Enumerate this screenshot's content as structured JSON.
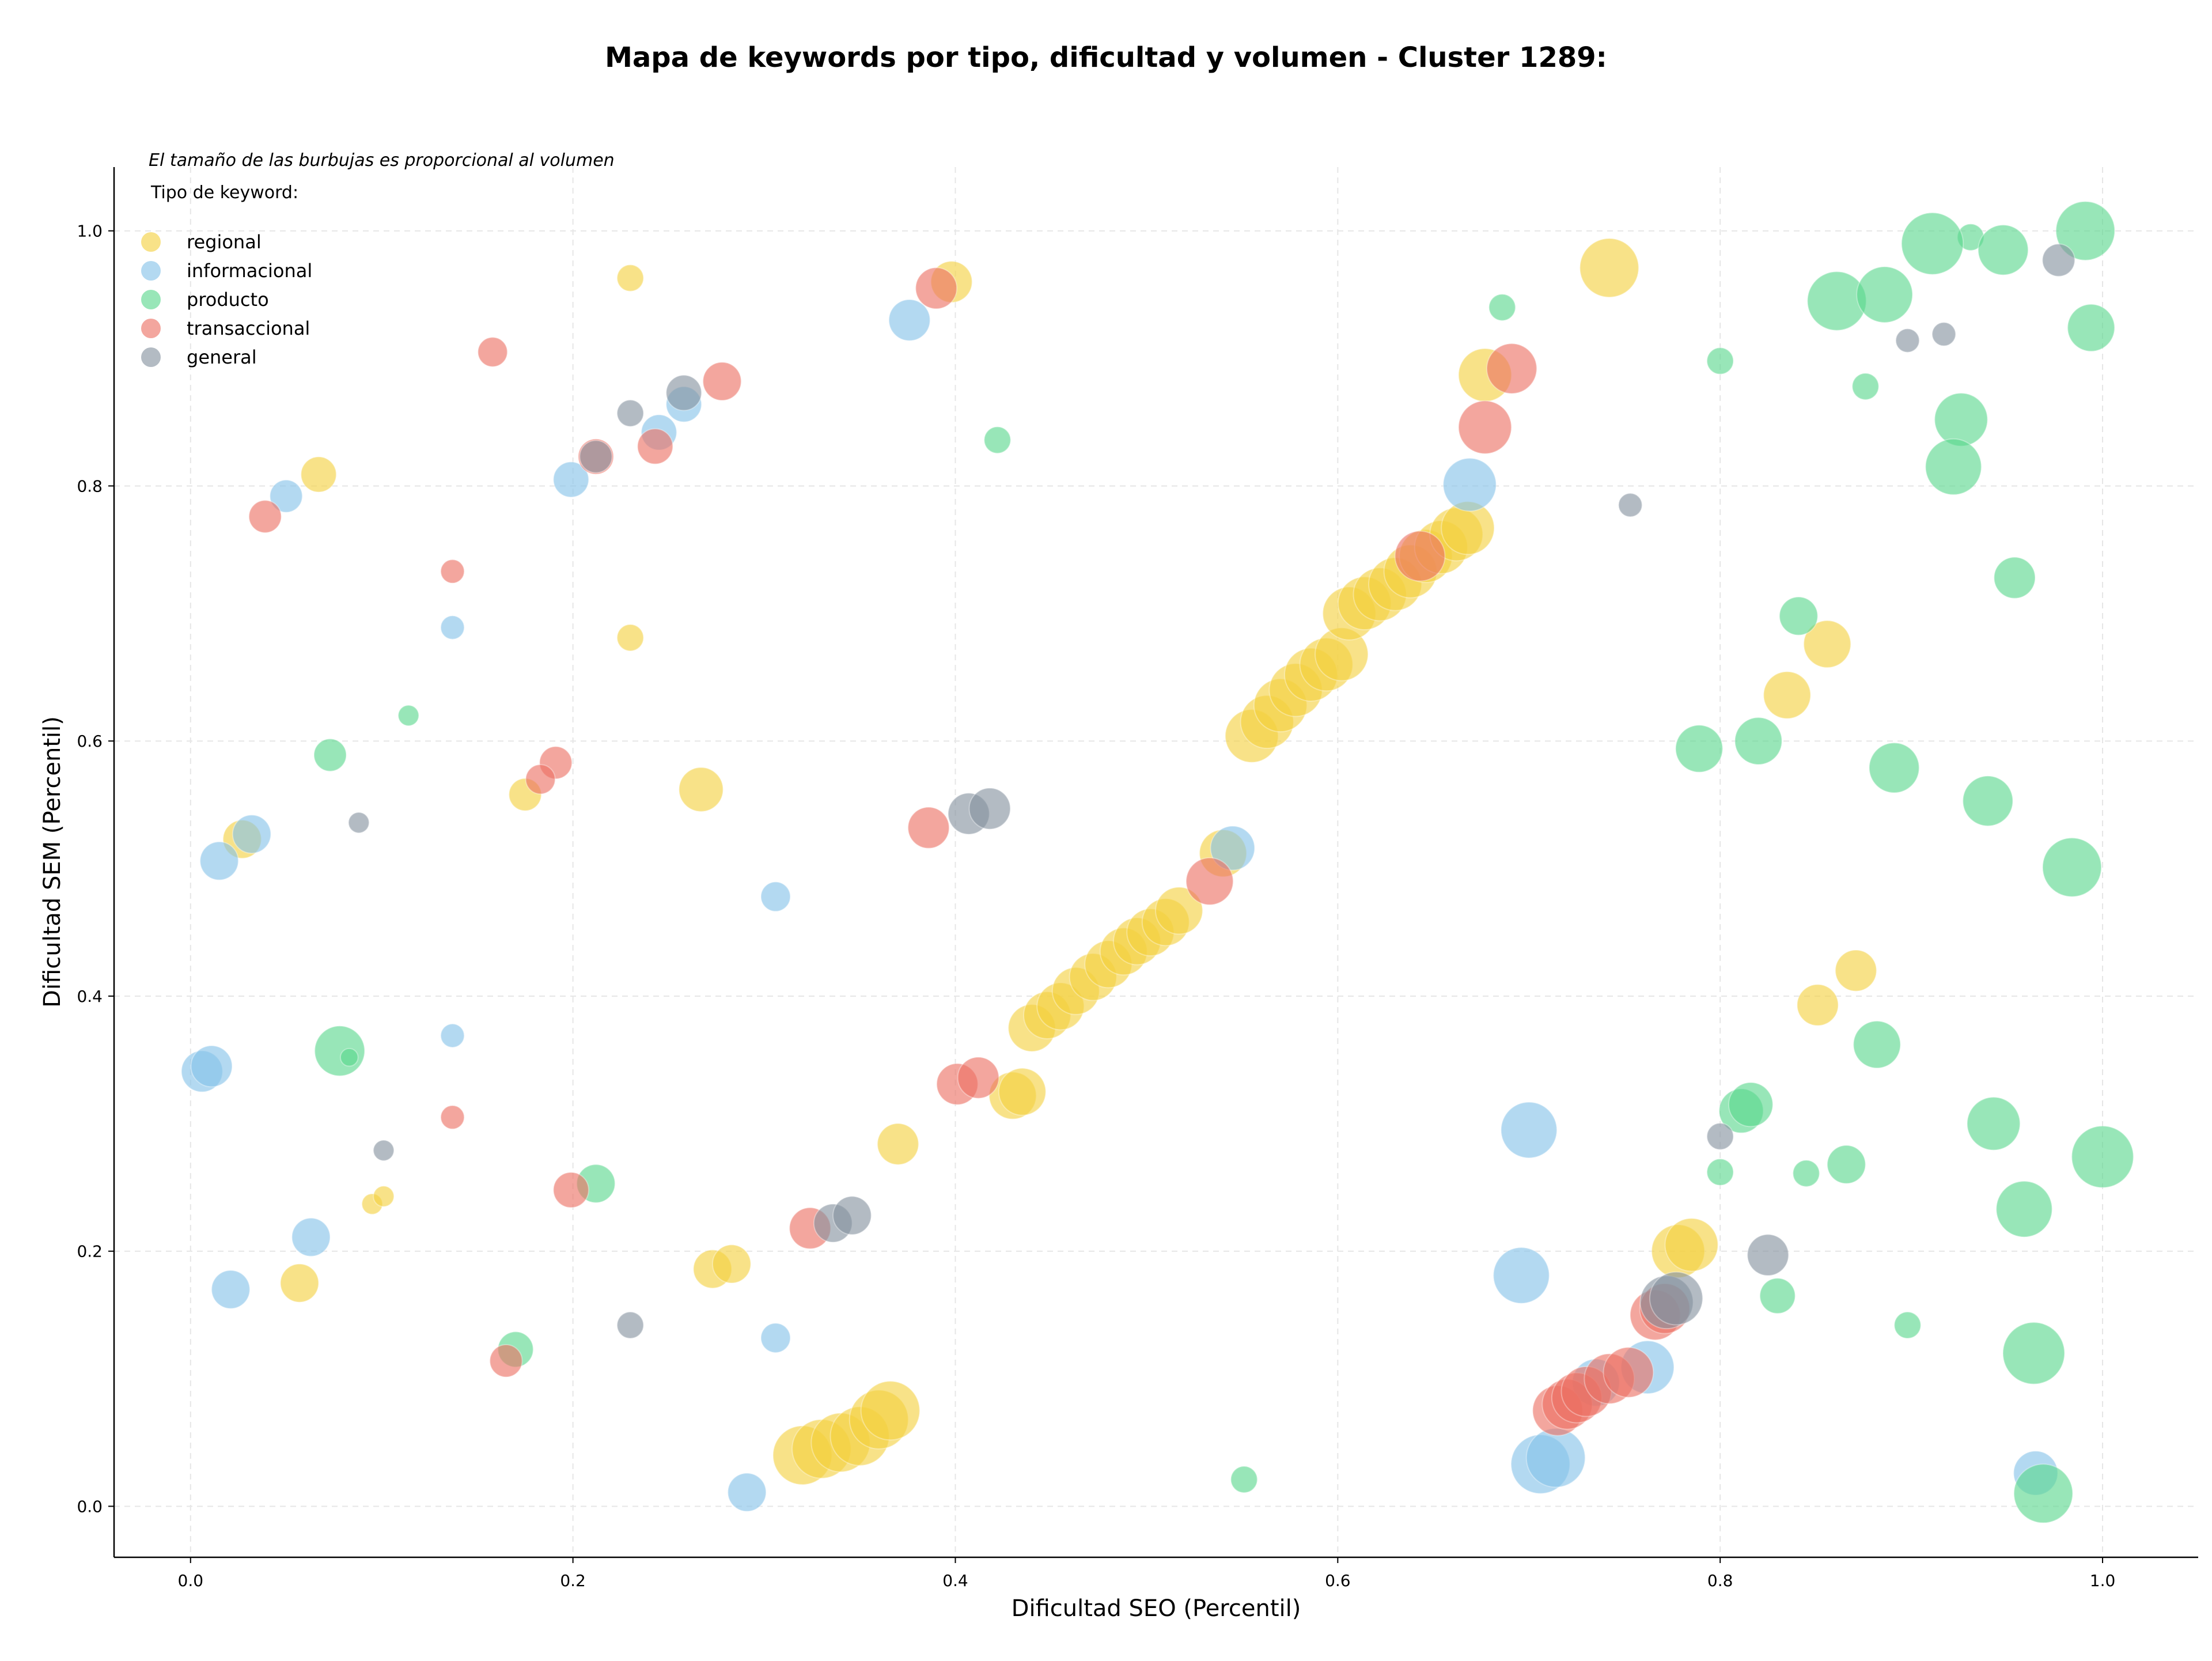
{
  "chart_data": {
    "type": "scatter",
    "title": "Mapa de keywords por tipo, dificultad y volumen - Cluster 1289:",
    "xlabel": "Dificultad SEO (Percentil)",
    "ylabel": "Dificultad SEM (Percentil)",
    "xlim": [
      -0.04,
      1.05
    ],
    "ylim": [
      -0.04,
      1.05
    ],
    "x_ticks": [
      "0.0",
      "0.2",
      "0.4",
      "0.6",
      "0.8",
      "1.0"
    ],
    "y_ticks": [
      "0.0",
      "0.2",
      "0.4",
      "0.6",
      "0.8",
      "1.0"
    ],
    "grid": true,
    "legend_placement": "top-left",
    "annotation": "El tamaño de las burbujas es proporcional al volumen",
    "legend_title": "Tipo de keyword:",
    "series": [
      {
        "name": "regional",
        "color": "#f4d03f",
        "points": [
          [
            0.23,
            0.963,
            9
          ],
          [
            0.067,
            0.809,
            12
          ],
          [
            0.23,
            0.681,
            9
          ],
          [
            0.267,
            0.562,
            15
          ],
          [
            0.027,
            0.523,
            13
          ],
          [
            0.175,
            0.558,
            11
          ],
          [
            0.095,
            0.237,
            7
          ],
          [
            0.101,
            0.243,
            7
          ],
          [
            0.057,
            0.175,
            13
          ],
          [
            0.273,
            0.186,
            13
          ],
          [
            0.283,
            0.19,
            13
          ],
          [
            0.37,
            0.284,
            14
          ],
          [
            0.398,
            0.96,
            14
          ],
          [
            0.742,
            0.971,
            20
          ],
          [
            0.677,
            0.887,
            18
          ],
          [
            0.43,
            0.322,
            16
          ],
          [
            0.435,
            0.325,
            16
          ],
          [
            0.32,
            0.04,
            20
          ],
          [
            0.33,
            0.045,
            20
          ],
          [
            0.34,
            0.05,
            20
          ],
          [
            0.35,
            0.055,
            20
          ],
          [
            0.36,
            0.068,
            20
          ],
          [
            0.366,
            0.075,
            20
          ],
          [
            0.44,
            0.375,
            16
          ],
          [
            0.448,
            0.385,
            16
          ],
          [
            0.455,
            0.392,
            16
          ],
          [
            0.463,
            0.404,
            16
          ],
          [
            0.472,
            0.415,
            16
          ],
          [
            0.48,
            0.425,
            16
          ],
          [
            0.488,
            0.435,
            16
          ],
          [
            0.495,
            0.443,
            16
          ],
          [
            0.502,
            0.45,
            16
          ],
          [
            0.51,
            0.458,
            16
          ],
          [
            0.517,
            0.467,
            16
          ],
          [
            0.54,
            0.512,
            16
          ],
          [
            0.555,
            0.604,
            18
          ],
          [
            0.563,
            0.615,
            18
          ],
          [
            0.57,
            0.628,
            18
          ],
          [
            0.578,
            0.64,
            18
          ],
          [
            0.586,
            0.652,
            18
          ],
          [
            0.594,
            0.66,
            18
          ],
          [
            0.602,
            0.668,
            18
          ],
          [
            0.606,
            0.7,
            18
          ],
          [
            0.614,
            0.708,
            18
          ],
          [
            0.622,
            0.715,
            18
          ],
          [
            0.63,
            0.723,
            18
          ],
          [
            0.638,
            0.733,
            18
          ],
          [
            0.646,
            0.745,
            18
          ],
          [
            0.654,
            0.752,
            18
          ],
          [
            0.662,
            0.762,
            18
          ],
          [
            0.668,
            0.767,
            18
          ],
          [
            0.835,
            0.636,
            16
          ],
          [
            0.856,
            0.676,
            16
          ],
          [
            0.851,
            0.393,
            14
          ],
          [
            0.871,
            0.42,
            14
          ],
          [
            0.778,
            0.2,
            18
          ],
          [
            0.785,
            0.205,
            18
          ]
        ]
      },
      {
        "name": "informacional",
        "color": "#85c1e9",
        "points": [
          [
            0.05,
            0.792,
            11
          ],
          [
            0.137,
            0.689,
            8
          ],
          [
            0.015,
            0.506,
            13
          ],
          [
            0.032,
            0.527,
            13
          ],
          [
            0.006,
            0.341,
            14
          ],
          [
            0.011,
            0.345,
            14
          ],
          [
            0.137,
            0.369,
            8
          ],
          [
            0.063,
            0.211,
            13
          ],
          [
            0.021,
            0.17,
            13
          ],
          [
            0.199,
            0.805,
            12
          ],
          [
            0.245,
            0.842,
            12
          ],
          [
            0.258,
            0.864,
            12
          ],
          [
            0.306,
            0.478,
            10
          ],
          [
            0.306,
            0.132,
            10
          ],
          [
            0.291,
            0.011,
            13
          ],
          [
            0.376,
            0.93,
            14
          ],
          [
            0.545,
            0.516,
            15
          ],
          [
            0.669,
            0.801,
            18
          ],
          [
            0.7,
            0.295,
            19
          ],
          [
            0.696,
            0.181,
            19
          ],
          [
            0.706,
            0.033,
            20
          ],
          [
            0.714,
            0.038,
            20
          ],
          [
            0.735,
            0.097,
            16
          ],
          [
            0.762,
            0.109,
            18
          ],
          [
            0.965,
            0.026,
            15
          ]
        ]
      },
      {
        "name": "producto",
        "color": "#58d68d",
        "points": [
          [
            0.114,
            0.62,
            7
          ],
          [
            0.073,
            0.589,
            11
          ],
          [
            0.078,
            0.357,
            17
          ],
          [
            0.083,
            0.352,
            6
          ],
          [
            0.212,
            0.253,
            13
          ],
          [
            0.17,
            0.123,
            12
          ],
          [
            0.422,
            0.836,
            9
          ],
          [
            0.686,
            0.94,
            9
          ],
          [
            0.551,
            0.021,
            9
          ],
          [
            0.8,
            0.898,
            9
          ],
          [
            0.876,
            0.878,
            9
          ],
          [
            0.931,
            0.995,
            9
          ],
          [
            0.991,
            1.0,
            20
          ],
          [
            0.911,
            0.99,
            21
          ],
          [
            0.948,
            0.985,
            17
          ],
          [
            0.861,
            0.945,
            20
          ],
          [
            0.886,
            0.95,
            19
          ],
          [
            0.994,
            0.924,
            16
          ],
          [
            0.926,
            0.852,
            18
          ],
          [
            0.922,
            0.815,
            19
          ],
          [
            0.954,
            0.728,
            14
          ],
          [
            0.841,
            0.698,
            13
          ],
          [
            0.789,
            0.594,
            16
          ],
          [
            0.82,
            0.6,
            16
          ],
          [
            0.891,
            0.579,
            17
          ],
          [
            0.94,
            0.553,
            17
          ],
          [
            0.984,
            0.501,
            20
          ],
          [
            0.882,
            0.362,
            16
          ],
          [
            0.811,
            0.31,
            15
          ],
          [
            0.816,
            0.315,
            15
          ],
          [
            0.8,
            0.262,
            9
          ],
          [
            0.845,
            0.261,
            9
          ],
          [
            0.866,
            0.268,
            13
          ],
          [
            0.943,
            0.3,
            18
          ],
          [
            0.959,
            0.233,
            19
          ],
          [
            1.0,
            0.274,
            21
          ],
          [
            0.83,
            0.165,
            12
          ],
          [
            0.898,
            0.142,
            9
          ],
          [
            0.964,
            0.12,
            21
          ],
          [
            0.969,
            0.01,
            20
          ]
        ]
      },
      {
        "name": "transaccional",
        "color": "#ec7063",
        "points": [
          [
            0.158,
            0.905,
            10
          ],
          [
            0.039,
            0.776,
            11
          ],
          [
            0.137,
            0.733,
            8
          ],
          [
            0.191,
            0.583,
            11
          ],
          [
            0.183,
            0.57,
            10
          ],
          [
            0.137,
            0.305,
            8
          ],
          [
            0.199,
            0.248,
            12
          ],
          [
            0.165,
            0.114,
            11
          ],
          [
            0.212,
            0.823,
            12
          ],
          [
            0.243,
            0.831,
            12
          ],
          [
            0.278,
            0.882,
            13
          ],
          [
            0.39,
            0.955,
            14
          ],
          [
            0.386,
            0.532,
            14
          ],
          [
            0.401,
            0.331,
            14
          ],
          [
            0.412,
            0.336,
            14
          ],
          [
            0.324,
            0.218,
            14
          ],
          [
            0.533,
            0.49,
            16
          ],
          [
            0.643,
            0.745,
            17
          ],
          [
            0.677,
            0.846,
            18
          ],
          [
            0.691,
            0.892,
            17
          ],
          [
            0.715,
            0.075,
            17
          ],
          [
            0.72,
            0.08,
            17
          ],
          [
            0.725,
            0.085,
            17
          ],
          [
            0.73,
            0.09,
            17
          ],
          [
            0.742,
            0.1,
            17
          ],
          [
            0.752,
            0.105,
            17
          ],
          [
            0.766,
            0.15,
            17
          ],
          [
            0.771,
            0.155,
            17
          ]
        ]
      },
      {
        "name": "general",
        "color": "#85929e",
        "points": [
          [
            0.23,
            0.857,
            9
          ],
          [
            0.258,
            0.873,
            12
          ],
          [
            0.212,
            0.823,
            11
          ],
          [
            0.088,
            0.536,
            7
          ],
          [
            0.101,
            0.279,
            7
          ],
          [
            0.23,
            0.142,
            9
          ],
          [
            0.336,
            0.222,
            13
          ],
          [
            0.346,
            0.228,
            13
          ],
          [
            0.407,
            0.543,
            14
          ],
          [
            0.418,
            0.547,
            14
          ],
          [
            0.753,
            0.785,
            8
          ],
          [
            0.898,
            0.914,
            8
          ],
          [
            0.917,
            0.919,
            8
          ],
          [
            0.977,
            0.977,
            11
          ],
          [
            0.8,
            0.29,
            9
          ],
          [
            0.825,
            0.197,
            14
          ],
          [
            0.772,
            0.16,
            18
          ],
          [
            0.777,
            0.163,
            18
          ]
        ]
      }
    ]
  }
}
